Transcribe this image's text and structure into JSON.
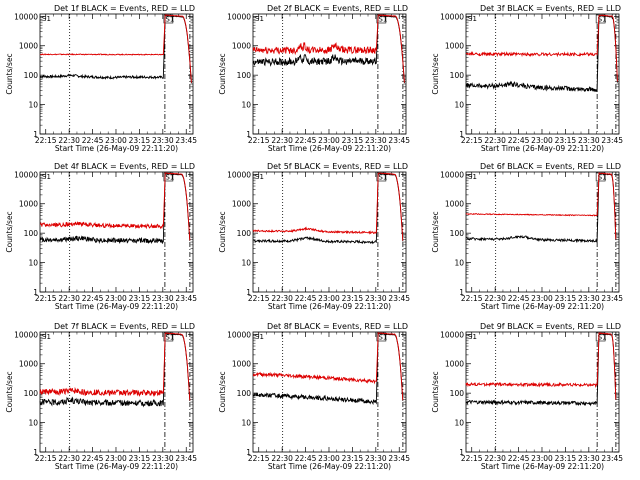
{
  "chart_data": [
    {
      "type": "line",
      "title": "Det 1f BLACK = Events, RED = LLD",
      "xlabel": "Start Time (26-May-09 22:11:20)",
      "ylabel": "Counts/sec",
      "x_ticks": [
        "22:15",
        "22:30",
        "22:45",
        "23:00",
        "23:15",
        "23:30",
        "23:45"
      ],
      "y_ticks": [
        "1",
        "10",
        "100",
        "1000",
        "10000"
      ],
      "ylim": [
        1,
        12000
      ],
      "y_scale": "log",
      "marker_label": "S1",
      "time_range_min": [
        0,
        98
      ],
      "series": [
        {
          "name": "Events",
          "color": "#000000",
          "start_level": 90,
          "end_level": 85,
          "noise": 0.04,
          "bumps": [
            {
              "t": 20,
              "f": 1.1,
              "w": 6
            },
            {
              "t": 45,
              "f": 0.95,
              "w": 8
            }
          ]
        },
        {
          "name": "LLD",
          "color": "#dd0000",
          "start_level": 510,
          "end_level": 500,
          "noise": 0.015,
          "bumps": []
        }
      ],
      "onset_min": 79,
      "peak_level": 11000,
      "decay_end_min": 97,
      "dotted_min": 19,
      "dashdot_min": [
        80,
        96
      ]
    },
    {
      "type": "line",
      "title": "Det 2f BLACK = Events, RED = LLD",
      "xlabel": "Start Time (26-May-09 22:11:20)",
      "ylabel": "Counts/sec",
      "x_ticks": [
        "22:15",
        "22:30",
        "22:45",
        "23:00",
        "23:15",
        "23:30",
        "23:45"
      ],
      "y_ticks": [
        "1",
        "10",
        "100",
        "1000",
        "10000"
      ],
      "ylim": [
        1,
        12000
      ],
      "y_scale": "log",
      "marker_label": "S1",
      "time_range_min": [
        0,
        98
      ],
      "series": [
        {
          "name": "Events",
          "color": "#000000",
          "start_level": 280,
          "end_level": 300,
          "noise": 0.12,
          "bumps": [
            {
              "t": 30,
              "f": 1.6,
              "w": 1
            },
            {
              "t": 33,
              "f": 1.5,
              "w": 1
            },
            {
              "t": 52,
              "f": 1.4,
              "w": 2
            }
          ]
        },
        {
          "name": "LLD",
          "color": "#dd0000",
          "start_level": 700,
          "end_level": 720,
          "noise": 0.12,
          "bumps": [
            {
              "t": 30,
              "f": 1.6,
              "w": 1
            },
            {
              "t": 33,
              "f": 1.5,
              "w": 1
            },
            {
              "t": 52,
              "f": 1.4,
              "w": 2
            }
          ]
        }
      ],
      "onset_min": 79,
      "peak_level": 11000,
      "decay_end_min": 97,
      "dotted_min": 19,
      "dashdot_min": [
        80,
        96
      ]
    },
    {
      "type": "line",
      "title": "Det 3f BLACK = Events, RED = LLD",
      "xlabel": "Start Time (26-May-09 22:11:20)",
      "ylabel": "Counts/sec",
      "x_ticks": [
        "22:15",
        "22:30",
        "22:45",
        "23:00",
        "23:15",
        "23:30",
        "23:45"
      ],
      "y_ticks": [
        "1",
        "10",
        "100",
        "1000",
        "10000"
      ],
      "ylim": [
        1,
        12000
      ],
      "y_scale": "log",
      "marker_label": "S1",
      "time_range_min": [
        0,
        98
      ],
      "series": [
        {
          "name": "Events",
          "color": "#000000",
          "start_level": 45,
          "end_level": 32,
          "noise": 0.08,
          "bumps": [
            {
              "t": 30,
              "f": 1.2,
              "w": 8
            }
          ]
        },
        {
          "name": "LLD",
          "color": "#dd0000",
          "start_level": 520,
          "end_level": 510,
          "noise": 0.05,
          "bumps": []
        }
      ],
      "onset_min": 84,
      "peak_level": 11000,
      "decay_end_min": 97,
      "dotted_min": 19,
      "dashdot_min": [
        84,
        96
      ]
    },
    {
      "type": "line",
      "title": "Det 4f BLACK = Events, RED = LLD",
      "xlabel": "Start Time (26-May-09 22:11:20)",
      "ylabel": "Counts/sec",
      "x_ticks": [
        "22:15",
        "22:30",
        "22:45",
        "23:00",
        "23:15",
        "23:30",
        "23:45"
      ],
      "y_ticks": [
        "1",
        "10",
        "100",
        "1000",
        "10000"
      ],
      "ylim": [
        1,
        12000
      ],
      "y_scale": "log",
      "marker_label": "S1",
      "time_range_min": [
        0,
        98
      ],
      "series": [
        {
          "name": "Events",
          "color": "#000000",
          "start_level": 60,
          "end_level": 55,
          "noise": 0.08,
          "bumps": [
            {
              "t": 25,
              "f": 1.15,
              "w": 8
            }
          ]
        },
        {
          "name": "LLD",
          "color": "#dd0000",
          "start_level": 190,
          "end_level": 170,
          "noise": 0.07,
          "bumps": [
            {
              "t": 25,
              "f": 1.15,
              "w": 8
            }
          ]
        }
      ],
      "onset_min": 79,
      "peak_level": 11000,
      "decay_end_min": 96,
      "dotted_min": 19,
      "dashdot_min": [
        80,
        96
      ]
    },
    {
      "type": "line",
      "title": "Det 5f BLACK = Events, RED = LLD",
      "xlabel": "Start Time (26-May-09 22:11:20)",
      "ylabel": "Counts/sec",
      "x_ticks": [
        "22:15",
        "22:30",
        "22:45",
        "23:00",
        "23:15",
        "23:30",
        "23:45"
      ],
      "y_ticks": [
        "1",
        "10",
        "100",
        "1000",
        "10000"
      ],
      "ylim": [
        1,
        12000
      ],
      "y_scale": "log",
      "marker_label": "S1",
      "time_range_min": [
        0,
        98
      ],
      "series": [
        {
          "name": "Events",
          "color": "#000000",
          "start_level": 55,
          "end_level": 50,
          "noise": 0.04,
          "bumps": [
            {
              "t": 35,
              "f": 1.3,
              "w": 7
            }
          ]
        },
        {
          "name": "LLD",
          "color": "#dd0000",
          "start_level": 120,
          "end_level": 105,
          "noise": 0.03,
          "bumps": [
            {
              "t": 35,
              "f": 1.25,
              "w": 7
            }
          ]
        }
      ],
      "onset_min": 79,
      "peak_level": 11000,
      "decay_end_min": 96,
      "dotted_min": 19,
      "dashdot_min": [
        80,
        96
      ]
    },
    {
      "type": "line",
      "title": "Det 6f BLACK = Events, RED = LLD",
      "xlabel": "Start Time (26-May-09 22:11:20)",
      "ylabel": "Counts/sec",
      "x_ticks": [
        "22:15",
        "22:30",
        "22:45",
        "23:00",
        "23:15",
        "23:30",
        "23:45"
      ],
      "y_ticks": [
        "1",
        "10",
        "100",
        "1000",
        "10000"
      ],
      "ylim": [
        1,
        12000
      ],
      "y_scale": "log",
      "marker_label": "S1",
      "time_range_min": [
        0,
        98
      ],
      "series": [
        {
          "name": "Events",
          "color": "#000000",
          "start_level": 65,
          "end_level": 55,
          "noise": 0.04,
          "bumps": [
            {
              "t": 35,
              "f": 1.25,
              "w": 8
            }
          ]
        },
        {
          "name": "LLD",
          "color": "#dd0000",
          "start_level": 450,
          "end_level": 400,
          "noise": 0.015,
          "bumps": []
        }
      ],
      "onset_min": 84,
      "peak_level": 11000,
      "decay_end_min": 96,
      "dotted_min": 19,
      "dashdot_min": [
        84,
        96
      ]
    },
    {
      "type": "line",
      "title": "Det 7f BLACK = Events, RED = LLD",
      "xlabel": "Start Time (26-May-09 22:11:20)",
      "ylabel": "Counts/sec",
      "x_ticks": [
        "22:15",
        "22:30",
        "22:45",
        "23:00",
        "23:15",
        "23:30",
        "23:45"
      ],
      "y_ticks": [
        "1",
        "10",
        "100",
        "1000",
        "10000"
      ],
      "ylim": [
        1,
        12000
      ],
      "y_scale": "log",
      "marker_label": "S1",
      "time_range_min": [
        0,
        98
      ],
      "series": [
        {
          "name": "Events",
          "color": "#000000",
          "start_level": 50,
          "end_level": 45,
          "noise": 0.1,
          "bumps": [
            {
              "t": 20,
              "f": 1.15,
              "w": 6
            }
          ]
        },
        {
          "name": "LLD",
          "color": "#dd0000",
          "start_level": 110,
          "end_level": 100,
          "noise": 0.1,
          "bumps": [
            {
              "t": 20,
              "f": 1.1,
              "w": 6
            }
          ]
        }
      ],
      "onset_min": 79,
      "peak_level": 11000,
      "decay_end_min": 96,
      "dotted_min": 19,
      "dashdot_min": [
        80,
        96
      ]
    },
    {
      "type": "line",
      "title": "Det 8f BLACK = Events, RED = LLD",
      "xlabel": "Start Time (26-May-09 22:11:20)",
      "ylabel": "Counts/sec",
      "x_ticks": [
        "22:15",
        "22:30",
        "22:45",
        "23:00",
        "23:15",
        "23:30",
        "23:45"
      ],
      "y_ticks": [
        "1",
        "10",
        "100",
        "1000",
        "10000"
      ],
      "ylim": [
        1,
        12000
      ],
      "y_scale": "log",
      "marker_label": "S1",
      "time_range_min": [
        0,
        98
      ],
      "series": [
        {
          "name": "Events",
          "color": "#000000",
          "start_level": 90,
          "end_level": 50,
          "noise": 0.07,
          "bumps": []
        },
        {
          "name": "LLD",
          "color": "#dd0000",
          "start_level": 450,
          "end_level": 250,
          "noise": 0.06,
          "bumps": []
        }
      ],
      "onset_min": 79,
      "peak_level": 11000,
      "decay_end_min": 96,
      "dotted_min": 19,
      "dashdot_min": [
        80,
        96
      ]
    },
    {
      "type": "line",
      "title": "Det 9f BLACK = Events, RED = LLD",
      "xlabel": "Start Time (26-May-09 22:11:20)",
      "ylabel": "Counts/sec",
      "x_ticks": [
        "22:15",
        "22:30",
        "22:45",
        "23:00",
        "23:15",
        "23:30",
        "23:45"
      ],
      "y_ticks": [
        "1",
        "10",
        "100",
        "1000",
        "10000"
      ],
      "ylim": [
        1,
        12000
      ],
      "y_scale": "log",
      "marker_label": "S1",
      "time_range_min": [
        0,
        98
      ],
      "series": [
        {
          "name": "Events",
          "color": "#000000",
          "start_level": 50,
          "end_level": 45,
          "noise": 0.06,
          "bumps": []
        },
        {
          "name": "LLD",
          "color": "#dd0000",
          "start_level": 200,
          "end_level": 190,
          "noise": 0.05,
          "bumps": []
        }
      ],
      "onset_min": 84,
      "peak_level": 11000,
      "decay_end_min": 96,
      "dotted_min": 19,
      "dashdot_min": [
        84,
        96
      ]
    }
  ]
}
